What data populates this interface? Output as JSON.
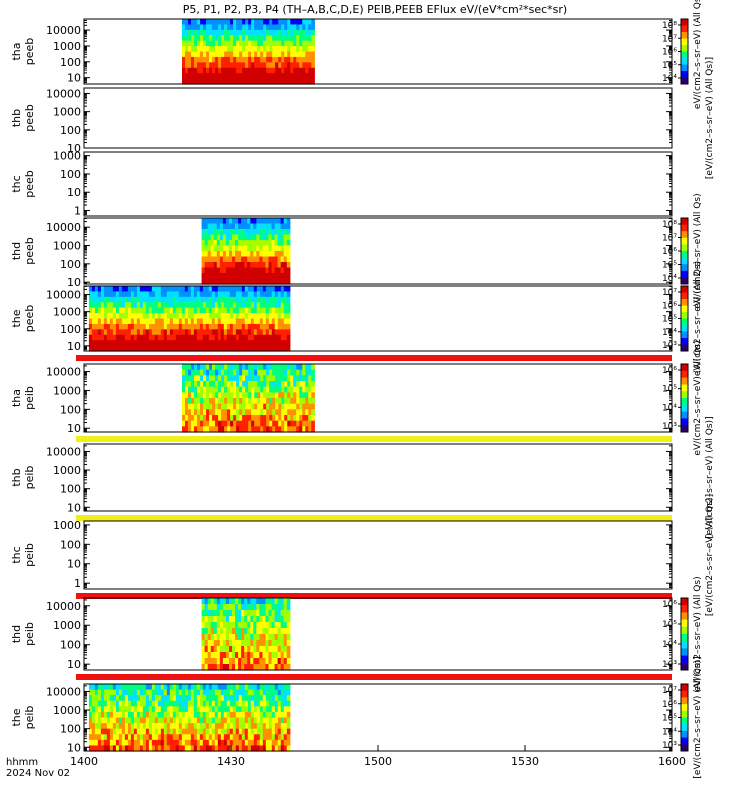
{
  "chart_data": {
    "type": "heatmap",
    "title": "P5, P1, P2, P3, P4 (TH–A,B,C,D,E) PEIB,PEEB EFlux eV/(eV*cm²*sec*sr)",
    "x_axis": {
      "ticks": [
        "1400",
        "1430",
        "1500",
        "1530",
        "1600"
      ],
      "label_line1": "hhmm",
      "label_line2": "2024 Nov 02",
      "range": [
        "1400",
        "1600"
      ]
    },
    "panels": [
      {
        "id": "tha_peeb",
        "label1": "tha",
        "label2": "peeb",
        "yticks": [
          "10",
          "100",
          "1000",
          "10000"
        ],
        "ylog": [
          0.6,
          4.7
        ],
        "data_span": [
          "1420",
          "1447"
        ],
        "colorbar": {
          "ticks": [
            "10⁴",
            "10⁵",
            "10⁶",
            "10⁷",
            "10⁸"
          ],
          "label": "eV/(cm2–s–sr–eV) (All Qs)"
        },
        "flag_bar": null
      },
      {
        "id": "thb_peeb",
        "label1": "thb",
        "label2": "peeb",
        "yticks": [
          "10",
          "100",
          "1000",
          "10000"
        ],
        "ylog": [
          1,
          4.3
        ],
        "data_span": null,
        "colorbar": null,
        "side_label": "[eV/(cm2–s–sr–eV) (All Qs)]",
        "flag_bar": null
      },
      {
        "id": "thc_peeb",
        "label1": "thc",
        "label2": "peeb",
        "yticks": [
          "1",
          "10",
          "100",
          "1000"
        ],
        "ylog": [
          -0.3,
          3.2
        ],
        "data_span": null,
        "colorbar": null,
        "flag_bar": null
      },
      {
        "id": "thd_peeb",
        "label1": "thd",
        "label2": "peeb",
        "yticks": [
          "10",
          "100",
          "1000",
          "10000"
        ],
        "ylog": [
          0.9,
          4.5
        ],
        "data_span": [
          "1424",
          "1442"
        ],
        "colorbar": {
          "ticks": [
            "10⁴",
            "10⁵",
            "10⁶",
            "10⁷",
            "10⁸"
          ],
          "label": "eV/(cm2–s–sr–eV) (All Qs)"
        },
        "flag_bar": null
      },
      {
        "id": "the_peeb",
        "label1": "the",
        "label2": "peeb",
        "yticks": [
          "10",
          "100",
          "1000",
          "10000"
        ],
        "ylog": [
          0.7,
          4.5
        ],
        "data_span": [
          "1401",
          "1442"
        ],
        "colorbar": {
          "ticks": [
            "10³",
            "10⁴",
            "10⁵",
            "10⁶",
            "10⁷"
          ],
          "label": "eV/(cm2–s–sr–eV) (All Qs)"
        },
        "flag_bar": "#ee1111"
      },
      {
        "id": "tha_peib",
        "label1": "tha",
        "label2": "peib",
        "yticks": [
          "10",
          "100",
          "1000",
          "10000"
        ],
        "ylog": [
          0.8,
          4.4
        ],
        "data_span": [
          "1420",
          "1447"
        ],
        "colorbar": {
          "ticks": [
            "10³",
            "10⁴",
            "10⁵",
            "10⁶"
          ],
          "label": "eV/(cm2–s–sr–eV) (All Qs)"
        },
        "flag_bar": "#f0f01a"
      },
      {
        "id": "thb_peib",
        "label1": "thb",
        "label2": "peib",
        "yticks": [
          "10",
          "100",
          "1000",
          "10000"
        ],
        "ylog": [
          0.8,
          4.4
        ],
        "data_span": null,
        "colorbar": null,
        "side_label": "[eV/(cm2–s–sr–eV) (All Qs)]",
        "flag_bar": "#f0f01a"
      },
      {
        "id": "thc_peib",
        "label1": "thc",
        "label2": "peib",
        "yticks": [
          "1",
          "10",
          "100",
          "1000"
        ],
        "ylog": [
          -0.3,
          3.2
        ],
        "data_span": null,
        "colorbar": null,
        "side_label": "[eV/(cm2–s–sr–eV) (All Qs)]",
        "flag_bar": "#ee1111"
      },
      {
        "id": "thd_peib",
        "label1": "thd",
        "label2": "peib",
        "yticks": [
          "10",
          "100",
          "1000",
          "10000"
        ],
        "ylog": [
          0.7,
          4.4
        ],
        "data_span": [
          "1424",
          "1442"
        ],
        "colorbar": {
          "ticks": [
            "10³",
            "10⁴",
            "10⁵",
            "10⁶"
          ],
          "label": "eV/(cm2–s–sr–eV) (All Qs)"
        },
        "flag_bar": "#ee1111"
      },
      {
        "id": "the_peib",
        "label1": "the",
        "label2": "peib",
        "yticks": [
          "10",
          "100",
          "1000",
          "10000"
        ],
        "ylog": [
          0.8,
          4.4
        ],
        "data_span": [
          "1401",
          "1442"
        ],
        "colorbar": {
          "ticks": [
            "10³",
            "10⁴",
            "10⁵",
            "10⁶",
            "10⁷"
          ],
          "label": "[eV/(cm2–s–sr–eV) (All Qs)]"
        },
        "flag_bar": null
      }
    ]
  }
}
